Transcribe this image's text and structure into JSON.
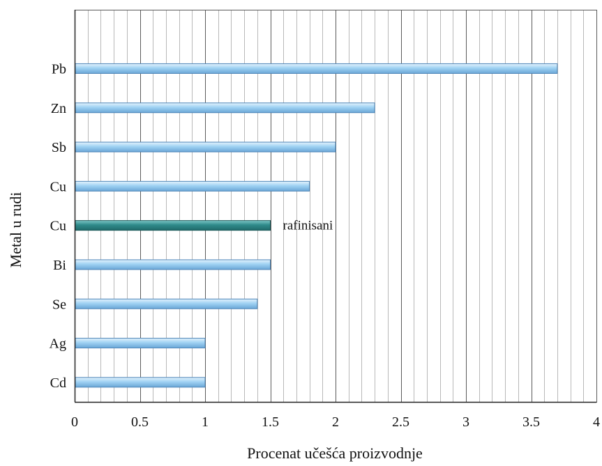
{
  "chart_data": {
    "type": "bar",
    "orientation": "horizontal",
    "categories": [
      "Cd",
      "Ag",
      "Se",
      "Bi",
      "Cu",
      "Cu",
      "Sb",
      "Zn",
      "Pb"
    ],
    "values": [
      1.0,
      1.0,
      1.4,
      1.5,
      1.5,
      1.8,
      2.0,
      2.3,
      3.7
    ],
    "highlight_index": 4,
    "annotations": [
      {
        "text": "rafinisani",
        "category_index": 4
      }
    ],
    "xlabel": "Procenat učešća proizvodnje",
    "ylabel": "Metal u rudi",
    "xlim": [
      0,
      4
    ],
    "xticks": [
      "0",
      "0.5",
      "1",
      "1.5",
      "2",
      "2.5",
      "3",
      "3.5",
      "4"
    ],
    "grid": true,
    "major_grid_step": 0.5,
    "minor_grid_step": 0.1,
    "colors": {
      "bar_light": "#e4f3fd",
      "bar": "#9fd2f3",
      "bar_dark": "#6aa6d6",
      "bar_edge": "#4f86b8",
      "highlight_light": "#7cc6c6",
      "highlight": "#2f8b8b",
      "highlight_dark": "#1f6a6a",
      "highlight_edge": "#1a5757",
      "grid_major": "#5a5a5a",
      "grid_minor": "#b8b8b8",
      "axis": "#222222"
    }
  }
}
